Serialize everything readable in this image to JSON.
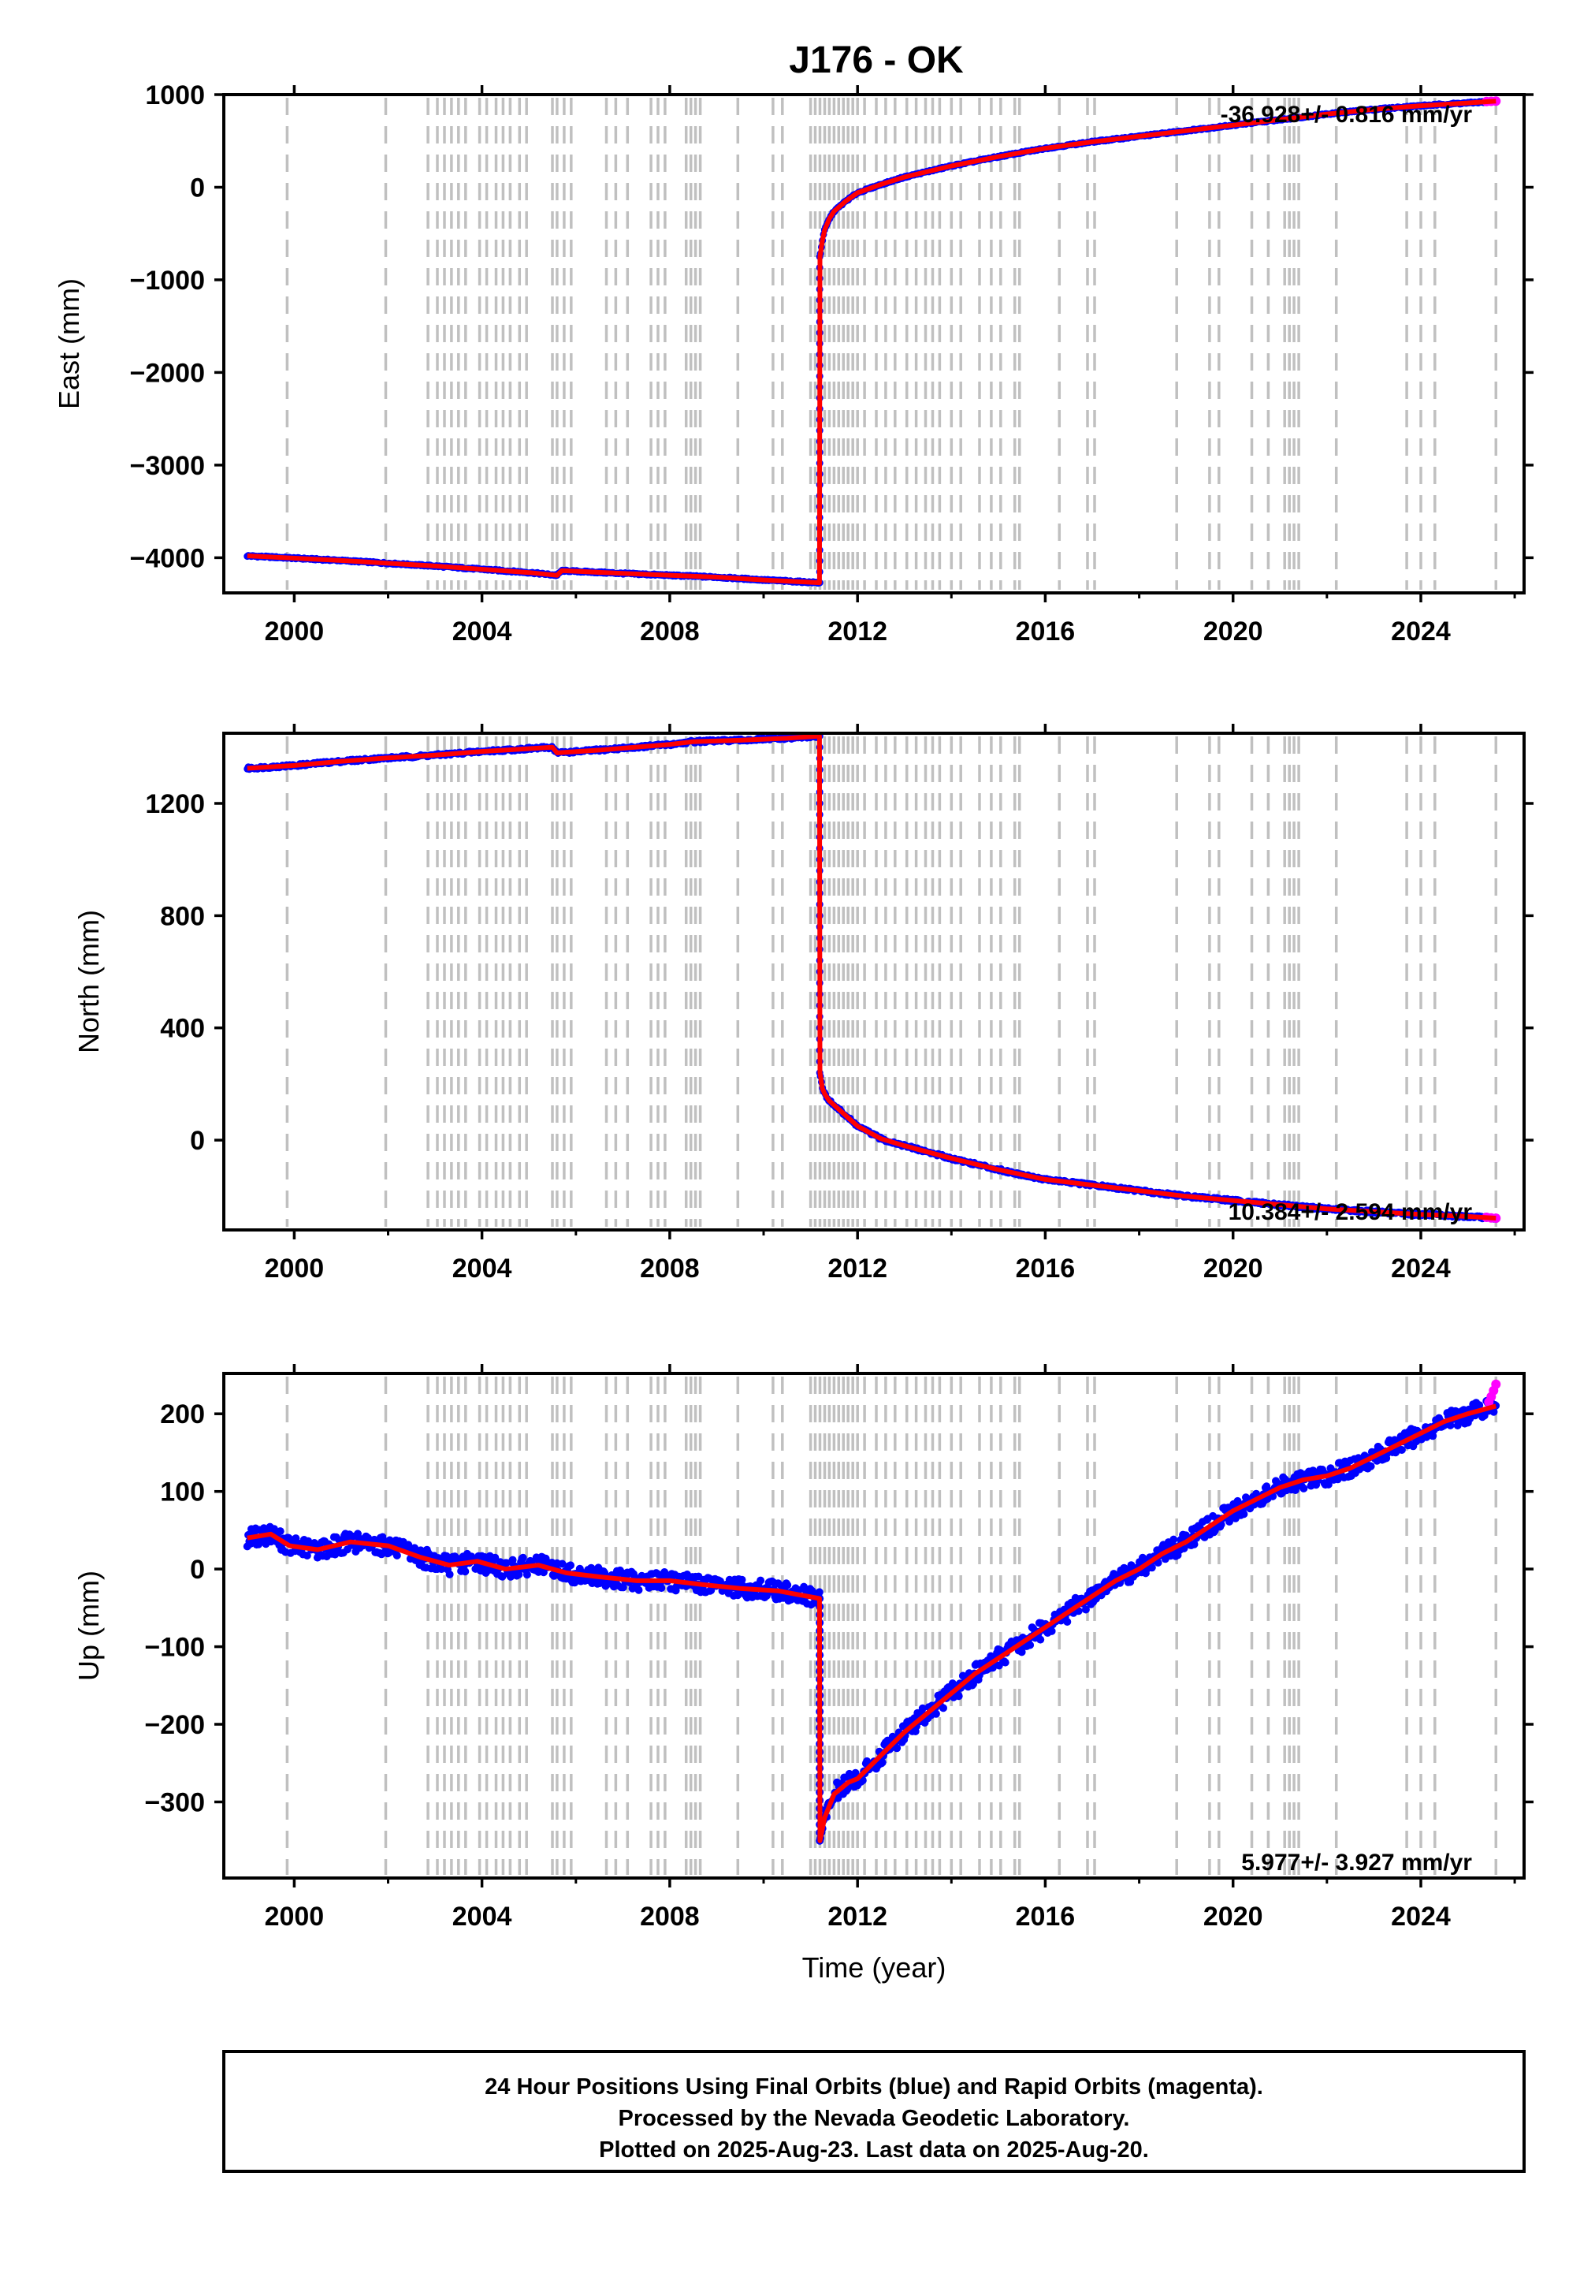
{
  "title": "J176 - OK",
  "colors": {
    "final": "#0000ff",
    "rapid": "#ff00ff",
    "model": "#ff0000",
    "event": "#c0c0c0",
    "frame": "#000000"
  },
  "event_lines": [
    1999.85,
    2001.95,
    2002.85,
    2003.05,
    2003.2,
    2003.35,
    2003.5,
    2003.65,
    2003.95,
    2004.1,
    2004.3,
    2004.45,
    2004.6,
    2004.8,
    2004.95,
    2005.5,
    2005.6,
    2005.75,
    2005.9,
    2006.65,
    2006.85,
    2007.1,
    2007.6,
    2007.75,
    2007.9,
    2008.35,
    2008.45,
    2008.55,
    2008.65,
    2009.45,
    2010.2,
    2010.4,
    2011.0,
    2011.1,
    2011.2,
    2011.3,
    2011.4,
    2011.5,
    2011.6,
    2011.7,
    2011.8,
    2011.9,
    2012.0,
    2012.15,
    2012.4,
    2012.6,
    2012.8,
    2013.05,
    2013.25,
    2013.45,
    2013.6,
    2013.75,
    2014.0,
    2014.2,
    2014.6,
    2014.85,
    2015.05,
    2015.35,
    2015.45,
    2016.3,
    2016.9,
    2017.05,
    2018.8,
    2019.5,
    2019.7,
    2020.4,
    2020.75,
    2021.1,
    2021.2,
    2021.3,
    2021.4,
    2022.2,
    2023.7,
    2024.0,
    2024.3,
    2025.6
  ],
  "chart_data": [
    {
      "type": "line",
      "name": "east",
      "ylabel": "East (mm)",
      "xlim": [
        1998.5,
        2026.2
      ],
      "ylim": [
        -4380,
        1000
      ],
      "yticks": [
        1000,
        0,
        -1000,
        -2000,
        -3000,
        -4000
      ],
      "ytick_labels": [
        "1000",
        "0",
        "−1000",
        "−2000",
        "−3000",
        "−4000"
      ],
      "xticks": [
        2000,
        2004,
        2008,
        2012,
        2016,
        2020,
        2024
      ],
      "xtick_labels": [
        "2000",
        "2004",
        "2008",
        "2012",
        "2016",
        "2020",
        "2024"
      ],
      "rate_label": "-36.928+/- 0.816 mm/yr",
      "x": [
        1999.0,
        2001.0,
        2003.0,
        2005.0,
        2005.6,
        2005.7,
        2007.0,
        2009.0,
        2010.0,
        2011.19,
        2011.2,
        2011.25,
        2011.3,
        2011.4,
        2011.5,
        2011.75,
        2012.0,
        2012.5,
        2013.0,
        2014.0,
        2015.0,
        2016.0,
        2017.0,
        2018.0,
        2019.0,
        2020.0,
        2021.0,
        2022.0,
        2023.0,
        2024.0,
        2025.0,
        2025.6
      ],
      "y": [
        -3980,
        -4030,
        -4090,
        -4160,
        -4190,
        -4140,
        -4170,
        -4210,
        -4240,
        -4270,
        -750,
        -580,
        -460,
        -340,
        -260,
        -150,
        -60,
        30,
        110,
        230,
        330,
        420,
        490,
        550,
        610,
        670,
        730,
        790,
        840,
        880,
        910,
        930
      ],
      "rapid": [
        [
          2025.4,
          925
        ],
        [
          2025.5,
          928
        ],
        [
          2025.6,
          930
        ]
      ]
    },
    {
      "type": "line",
      "name": "north",
      "ylabel": "North (mm)",
      "xlim": [
        1998.5,
        2026.2
      ],
      "ylim": [
        -320,
        1450
      ],
      "yticks": [
        1200,
        800,
        400,
        0
      ],
      "ytick_labels": [
        "1200",
        "800",
        "400",
        "0"
      ],
      "xticks": [
        2000,
        2004,
        2008,
        2012,
        2016,
        2020,
        2024
      ],
      "xtick_labels": [
        "2000",
        "2004",
        "2008",
        "2012",
        "2016",
        "2020",
        "2024"
      ],
      "rate_label": "10.384+/- 2.594 mm/yr",
      "x": [
        1999.0,
        2000.0,
        2001.0,
        2002.0,
        2003.0,
        2004.0,
        2005.5,
        2005.6,
        2006.5,
        2008.0,
        2008.5,
        2009.5,
        2010.5,
        2011.19,
        2011.2,
        2011.25,
        2011.3,
        2011.4,
        2011.6,
        2011.8,
        2012.0,
        2012.5,
        2013.0,
        2014.0,
        2015.0,
        2016.0,
        2017.0,
        2018.0,
        2019.0,
        2020.0,
        2021.0,
        2022.0,
        2023.0,
        2024.0,
        2025.0,
        2025.6
      ],
      "y": [
        1325,
        1335,
        1350,
        1362,
        1372,
        1385,
        1400,
        1380,
        1390,
        1410,
        1420,
        1425,
        1432,
        1440,
        240,
        185,
        165,
        140,
        110,
        80,
        50,
        5,
        -20,
        -65,
        -105,
        -140,
        -160,
        -180,
        -200,
        -215,
        -230,
        -245,
        -255,
        -265,
        -272,
        -278
      ],
      "rapid": [
        [
          2025.4,
          -275
        ],
        [
          2025.5,
          -277
        ],
        [
          2025.6,
          -278
        ]
      ]
    },
    {
      "type": "line",
      "name": "up",
      "ylabel": "Up (mm)",
      "xlabel": "Time (year)",
      "xlim": [
        1998.5,
        2026.2
      ],
      "ylim": [
        -398,
        252
      ],
      "yticks": [
        200,
        100,
        0,
        -100,
        -200,
        -300
      ],
      "ytick_labels": [
        "200",
        "100",
        "0",
        "−100",
        "−200",
        "−300"
      ],
      "xticks": [
        2000,
        2004,
        2008,
        2012,
        2016,
        2020,
        2024
      ],
      "xtick_labels": [
        "2000",
        "2004",
        "2008",
        "2012",
        "2016",
        "2020",
        "2024"
      ],
      "rate_label": "5.977+/- 3.927 mm/yr",
      "x": [
        1999.0,
        1999.5,
        1999.9,
        2000.5,
        2001.2,
        2002.0,
        2002.7,
        2003.3,
        2003.9,
        2004.5,
        2005.2,
        2005.8,
        2006.5,
        2007.3,
        2008.0,
        2008.7,
        2009.5,
        2010.3,
        2011.19,
        2011.2,
        2011.3,
        2011.5,
        2011.8,
        2012.0,
        2012.5,
        2013.0,
        2013.5,
        2014.0,
        2014.5,
        2015.0,
        2015.5,
        2016.0,
        2016.5,
        2017.0,
        2017.5,
        2018.0,
        2018.5,
        2019.0,
        2019.5,
        2020.0,
        2020.5,
        2021.0,
        2021.5,
        2022.0,
        2022.5,
        2023.0,
        2023.5,
        2024.0,
        2024.5,
        2025.0,
        2025.3,
        2025.6
      ],
      "y": [
        40,
        45,
        30,
        25,
        35,
        30,
        15,
        5,
        10,
        0,
        5,
        -5,
        -10,
        -15,
        -15,
        -20,
        -25,
        -28,
        -38,
        -350,
        -320,
        -290,
        -275,
        -270,
        -240,
        -210,
        -185,
        -160,
        -135,
        -115,
        -95,
        -75,
        -55,
        -35,
        -15,
        0,
        20,
        35,
        55,
        75,
        90,
        105,
        115,
        120,
        130,
        145,
        160,
        175,
        190,
        200,
        205,
        210
      ],
      "rapid": [
        [
          2025.45,
          215
        ],
        [
          2025.5,
          222
        ],
        [
          2025.55,
          230
        ],
        [
          2025.6,
          238
        ]
      ]
    }
  ],
  "footer": {
    "line1": "24 Hour Positions Using Final Orbits (blue) and Rapid Orbits (magenta).",
    "line2": "Processed by the Nevada Geodetic Laboratory.",
    "line3": "Plotted on 2025-Aug-23. Last data on 2025-Aug-20."
  }
}
